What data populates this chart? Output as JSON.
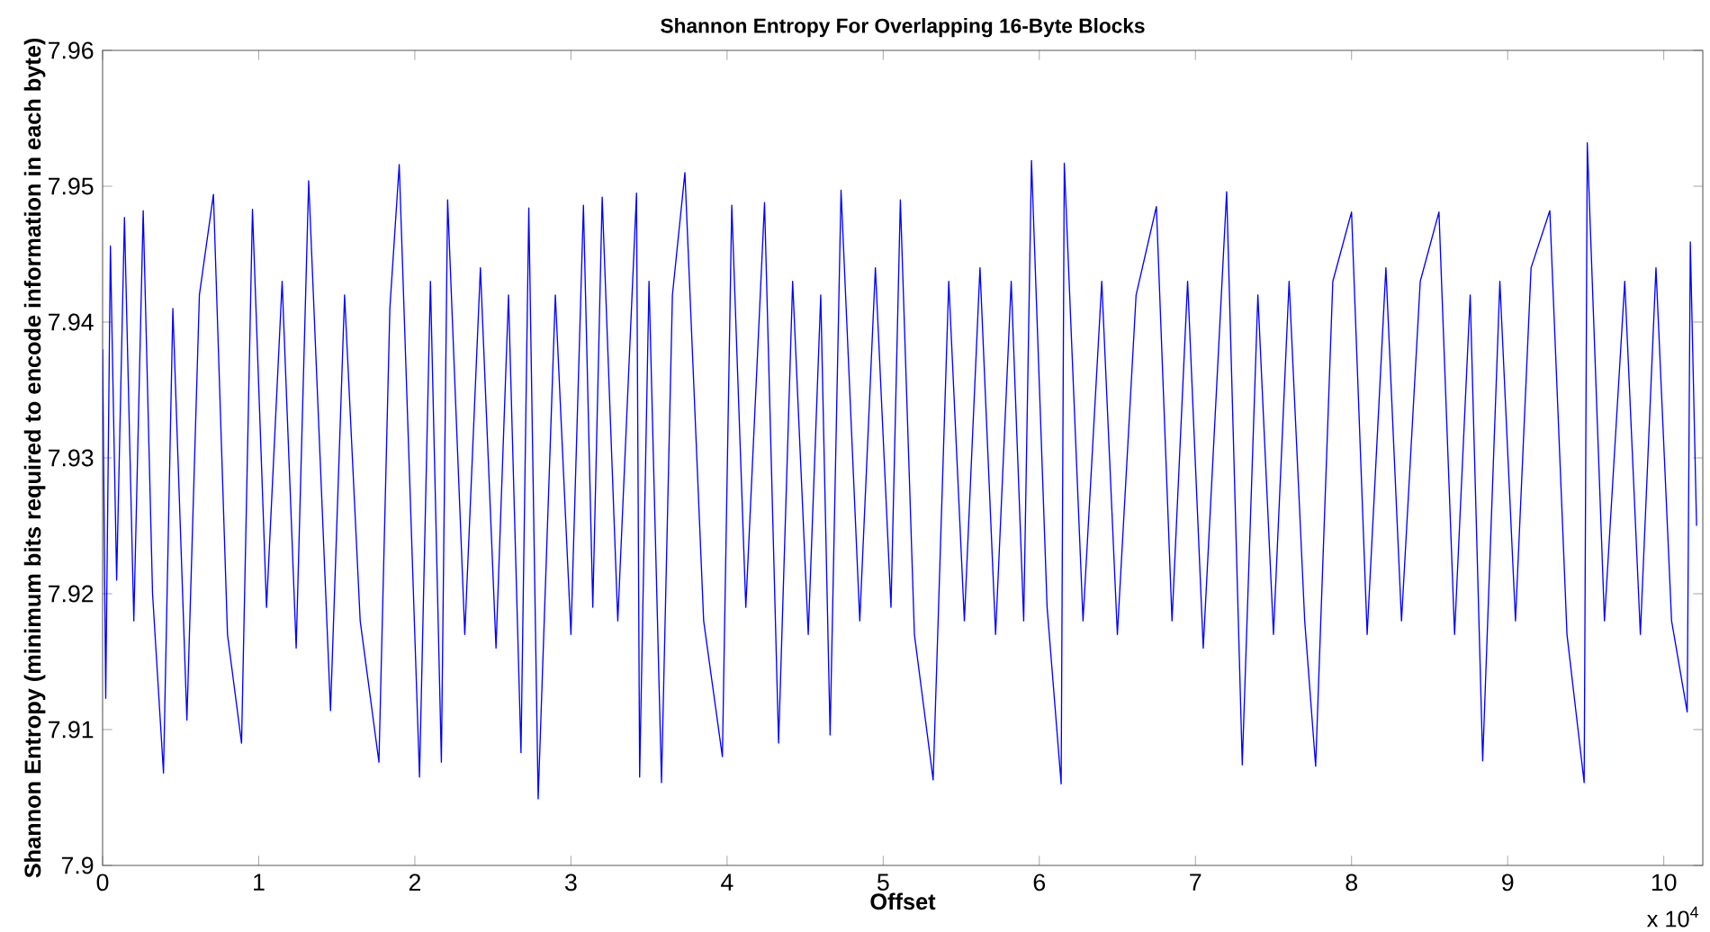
{
  "chart_data": {
    "type": "line",
    "title": "Shannon Entropy For Overlapping 16-Byte Blocks",
    "xlabel": "Offset",
    "ylabel": "Shannon Entropy (minimum bits required to encode information in each byte)",
    "annotations": [
      "x 10$^{4}$"
    ],
    "xlim": [
      0,
      10.25
    ],
    "ylim": [
      7.9,
      7.96
    ],
    "xticks": [
      0,
      1,
      2,
      3,
      4,
      5,
      6,
      7,
      8,
      9,
      10
    ],
    "yticks": [
      7.9,
      7.91,
      7.92,
      7.93,
      7.94,
      7.95,
      7.96
    ],
    "grid": false,
    "series": [
      {
        "color": "#0000ff",
        "x": [
          0.0,
          0.02,
          0.05,
          0.09,
          0.14,
          0.2,
          0.26,
          0.32,
          0.39,
          0.45,
          0.54,
          0.62,
          0.71,
          0.8,
          0.89,
          0.96,
          1.05,
          1.15,
          1.24,
          1.32,
          1.46,
          1.55,
          1.65,
          1.77,
          1.84,
          1.9,
          2.03,
          2.1,
          2.17,
          2.21,
          2.32,
          2.42,
          2.52,
          2.6,
          2.68,
          2.73,
          2.79,
          2.9,
          3.0,
          3.08,
          3.14,
          3.2,
          3.3,
          3.42,
          3.44,
          3.5,
          3.58,
          3.65,
          3.73,
          3.85,
          3.97,
          4.03,
          4.12,
          4.24,
          4.33,
          4.42,
          4.52,
          4.6,
          4.66,
          4.73,
          4.85,
          4.95,
          5.05,
          5.11,
          5.2,
          5.32,
          5.42,
          5.52,
          5.62,
          5.72,
          5.82,
          5.9,
          5.95,
          6.05,
          6.14,
          6.16,
          6.28,
          6.4,
          6.5,
          6.62,
          6.75,
          6.85,
          6.95,
          7.05,
          7.2,
          7.3,
          7.4,
          7.5,
          7.6,
          7.7,
          7.77,
          7.88,
          8.0,
          8.1,
          8.22,
          8.32,
          8.44,
          8.56,
          8.66,
          8.76,
          8.84,
          8.95,
          9.05,
          9.15,
          9.27,
          9.38,
          9.49,
          9.51,
          9.62,
          9.75,
          9.85,
          9.95,
          10.05,
          10.15,
          10.17,
          10.21
        ],
        "values": [
          7.938,
          7.9123,
          7.9456,
          7.921,
          7.9477,
          7.918,
          7.9482,
          7.92,
          7.9068,
          7.941,
          7.9107,
          7.942,
          7.9494,
          7.917,
          7.909,
          7.9483,
          7.919,
          7.943,
          7.916,
          7.9504,
          7.9114,
          7.942,
          7.918,
          7.9076,
          7.941,
          7.9516,
          7.9065,
          7.943,
          7.9076,
          7.949,
          7.917,
          7.944,
          7.916,
          7.942,
          7.9083,
          7.9484,
          7.9049,
          7.942,
          7.917,
          7.9486,
          7.919,
          7.9492,
          7.918,
          7.9495,
          7.9065,
          7.943,
          7.9061,
          7.942,
          7.951,
          7.918,
          7.908,
          7.9486,
          7.919,
          7.9488,
          7.909,
          7.943,
          7.917,
          7.942,
          7.9096,
          7.9497,
          7.918,
          7.944,
          7.919,
          7.949,
          7.917,
          7.9063,
          7.943,
          7.918,
          7.944,
          7.917,
          7.943,
          7.918,
          7.9519,
          7.919,
          7.906,
          7.9517,
          7.918,
          7.943,
          7.917,
          7.942,
          7.9485,
          7.918,
          7.943,
          7.916,
          7.9496,
          7.9074,
          7.942,
          7.917,
          7.943,
          7.918,
          7.9073,
          7.943,
          7.9481,
          7.917,
          7.944,
          7.918,
          7.943,
          7.9481,
          7.917,
          7.942,
          7.9077,
          7.943,
          7.918,
          7.944,
          7.9482,
          7.917,
          7.9061,
          7.9532,
          7.918,
          7.943,
          7.917,
          7.944,
          7.918,
          7.9113,
          7.9459,
          7.925
        ]
      }
    ]
  }
}
